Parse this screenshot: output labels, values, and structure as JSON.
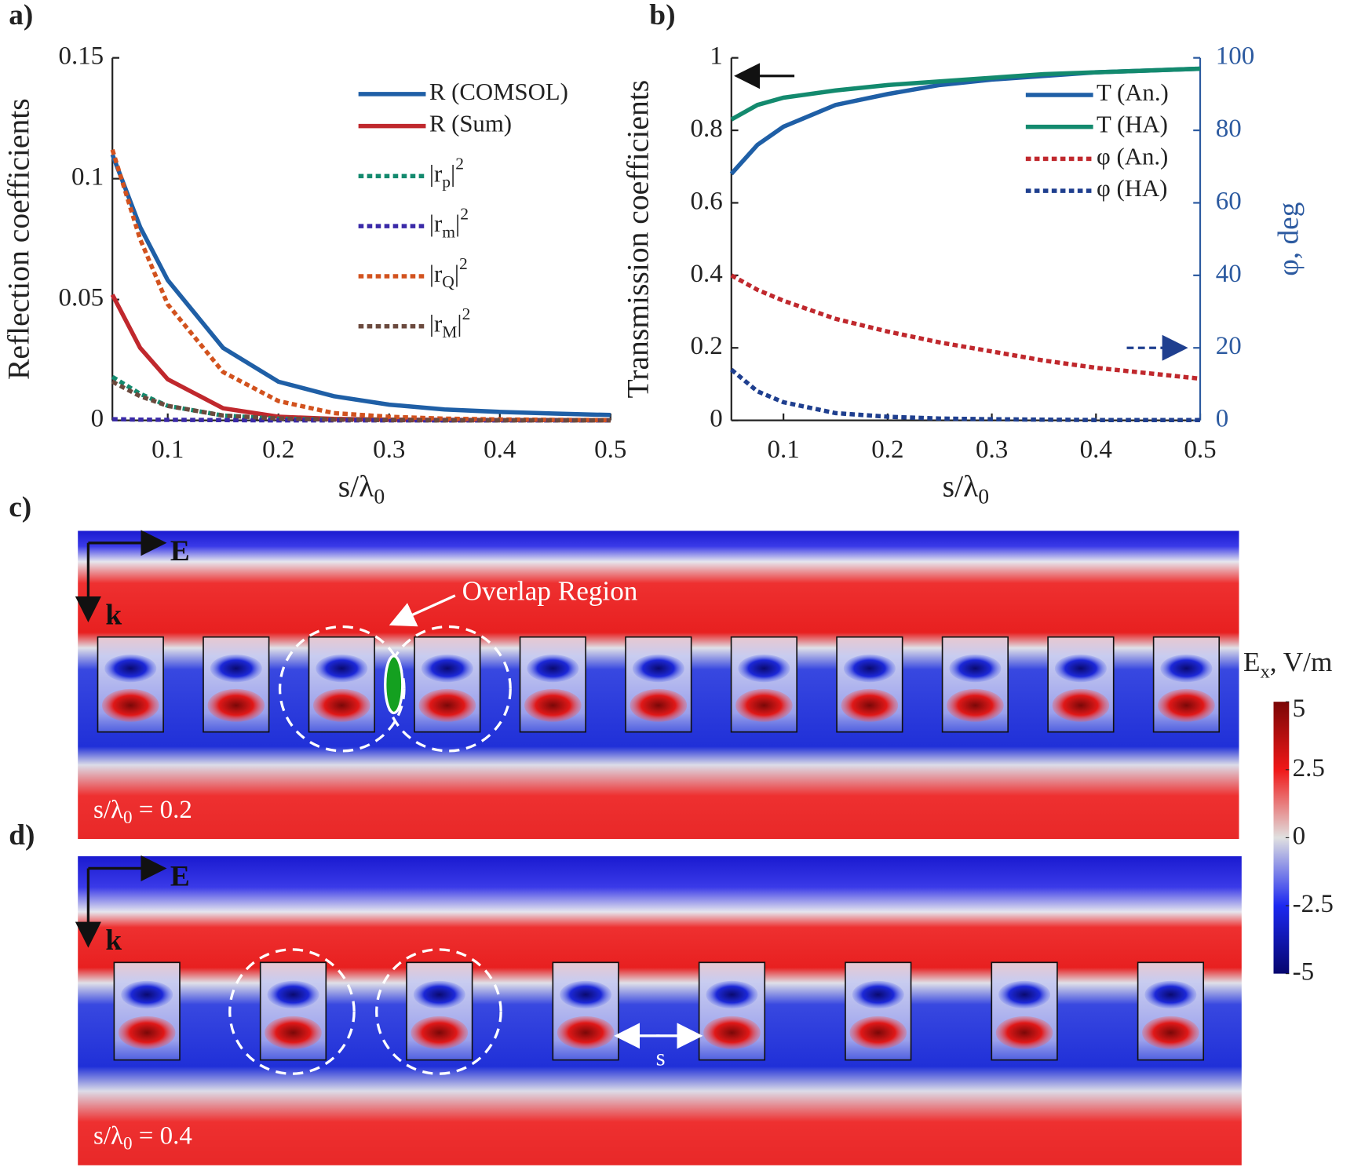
{
  "chart_data": [
    {
      "type": "line",
      "panel": "a)",
      "ylabel": "Reflection coefficients",
      "xlabel": "s/λ_0",
      "x": [
        0.05,
        0.075,
        0.1,
        0.15,
        0.2,
        0.25,
        0.3,
        0.35,
        0.4,
        0.45,
        0.5
      ],
      "xlim": [
        0.05,
        0.5
      ],
      "xticks": [
        0.1,
        0.2,
        0.3,
        0.4,
        0.5
      ],
      "ylim": [
        0,
        0.15
      ],
      "yticks": [
        0,
        0.05,
        0.1,
        0.15
      ],
      "series": [
        {
          "name": "R (COMSOL)",
          "color": "#1f5fa6",
          "style": "solid",
          "values": [
            0.11,
            0.08,
            0.058,
            0.03,
            0.016,
            0.01,
            0.0065,
            0.0045,
            0.0035,
            0.0028,
            0.0022
          ]
        },
        {
          "name": "R (Sum)",
          "color": "#c0282d",
          "style": "solid",
          "values": [
            0.052,
            0.03,
            0.017,
            0.005,
            0.0015,
            0.0006,
            0.0003,
            0.0002,
            0.0001,
            0.0001,
            0
          ]
        },
        {
          "name": "|r_p|^2",
          "color": "#138a6e",
          "style": "dotted",
          "values": [
            0.018,
            0.011,
            0.006,
            0.002,
            0.0007,
            0.0003,
            0.0001,
            0,
            0,
            0,
            0
          ]
        },
        {
          "name": "|r_m|^2",
          "color": "#3a2aa8",
          "style": "dotted",
          "values": [
            0.0005,
            0.0003,
            0.0002,
            0.0001,
            0,
            0,
            0,
            0,
            0,
            0,
            0
          ]
        },
        {
          "name": "|r_Q|^2",
          "color": "#d2521e",
          "style": "dotted",
          "values": [
            0.112,
            0.075,
            0.048,
            0.02,
            0.008,
            0.003,
            0.0015,
            0.0007,
            0.0004,
            0.0002,
            0.0001
          ]
        },
        {
          "name": "|r_M|^2",
          "color": "#6b4a3e",
          "style": "dotted",
          "values": [
            0.016,
            0.01,
            0.006,
            0.002,
            0.0008,
            0.0003,
            0.0001,
            0,
            0,
            0,
            0
          ]
        }
      ]
    },
    {
      "type": "line",
      "panel": "b)",
      "ylabel": "Transmission coefficients",
      "xlabel": "s/λ_0",
      "y2label": "φ, deg",
      "x": [
        0.05,
        0.075,
        0.1,
        0.15,
        0.2,
        0.25,
        0.3,
        0.35,
        0.4,
        0.45,
        0.5
      ],
      "xlim": [
        0.05,
        0.5
      ],
      "xticks": [
        0.1,
        0.2,
        0.3,
        0.4,
        0.5
      ],
      "ylim": [
        0,
        1
      ],
      "yticks": [
        0,
        0.2,
        0.4,
        0.6,
        0.8,
        1
      ],
      "y2lim": [
        0,
        100
      ],
      "y2ticks": [
        0,
        20,
        40,
        60,
        80,
        100
      ],
      "y2color": "#2c5aa0",
      "series": [
        {
          "name": "T (An.)",
          "color": "#1f5fa6",
          "style": "solid",
          "values": [
            0.68,
            0.76,
            0.81,
            0.87,
            0.9,
            0.925,
            0.94,
            0.95,
            0.96,
            0.965,
            0.97
          ]
        },
        {
          "name": "T (HA)",
          "color": "#138a6e",
          "style": "solid",
          "values": [
            0.83,
            0.87,
            0.89,
            0.91,
            0.925,
            0.935,
            0.945,
            0.955,
            0.96,
            0.965,
            0.97
          ]
        },
        {
          "name": "φ (An.)",
          "color": "#c0282d",
          "style": "dotted",
          "axis": "y2",
          "values": [
            40,
            36,
            33,
            28,
            24.5,
            21.5,
            19,
            16.5,
            14.5,
            13,
            11.5
          ]
        },
        {
          "name": "φ (HA)",
          "color": "#1f3f8f",
          "style": "dotted",
          "axis": "y2",
          "values": [
            14,
            8,
            5,
            2,
            1,
            0.5,
            0.3,
            0.2,
            0.1,
            0.1,
            0.1
          ]
        }
      ]
    },
    {
      "type": "field",
      "panel": "c)",
      "label": "s/λ_0 = 0.2",
      "e_label": "E",
      "k_label": "k",
      "annotation": "Overlap Region"
    },
    {
      "type": "field",
      "panel": "d)",
      "label": "s/λ_0 = 0.4",
      "e_label": "E",
      "k_label": "k",
      "spacing_label": "s"
    },
    {
      "type": "colorbar",
      "title": "E_x, V/m",
      "clim": [
        -5,
        5
      ],
      "ticks": [
        -5,
        -2.5,
        0,
        2.5,
        5
      ]
    }
  ]
}
